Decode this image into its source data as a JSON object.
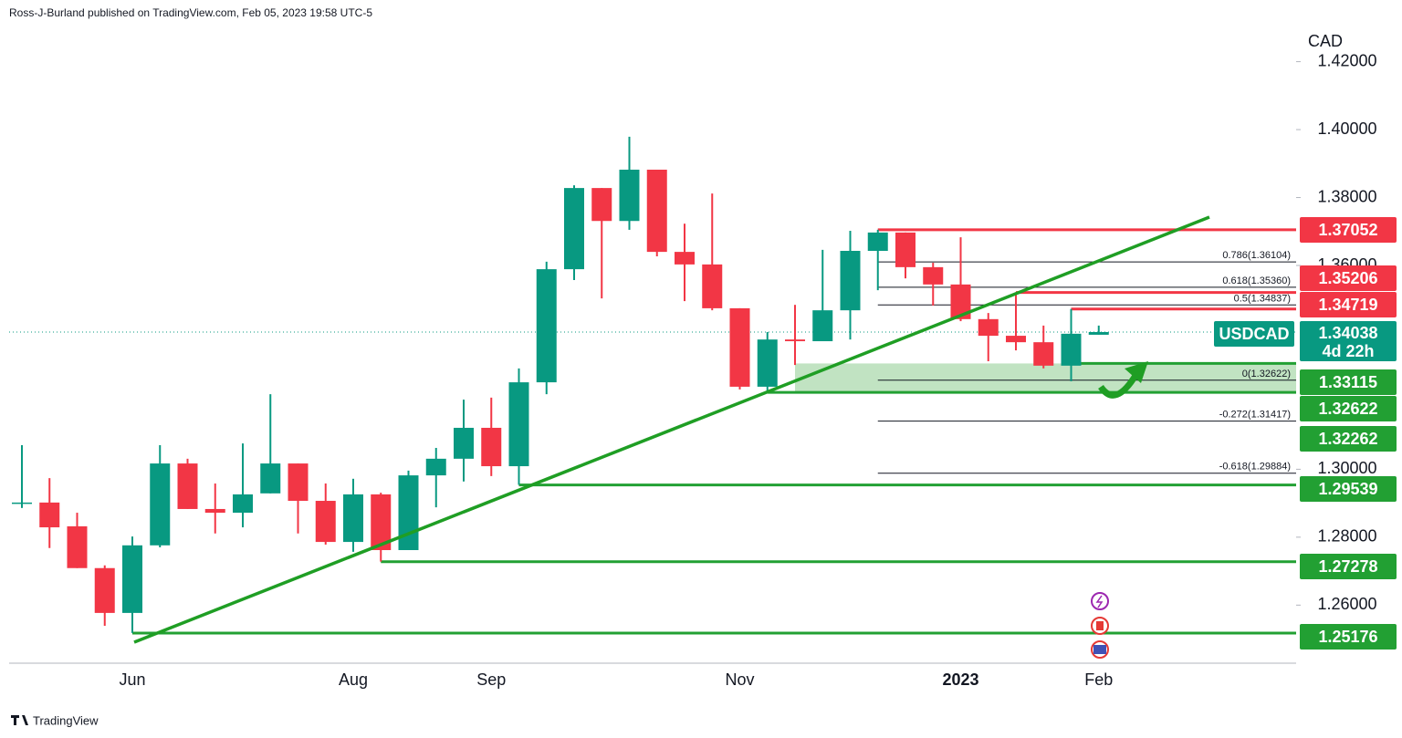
{
  "header": "Ross-J-Burland published on TradingView.com, Feb 05, 2023 19:58 UTC-5",
  "chart_data": {
    "type": "candlestick",
    "currency": "CAD",
    "categories": [
      null,
      null,
      null,
      null,
      "Jun",
      null,
      null,
      null,
      null,
      null,
      null,
      null,
      "Aug",
      null,
      null,
      null,
      null,
      "Sep",
      null,
      null,
      null,
      null,
      null,
      null,
      null,
      null,
      "Nov",
      null,
      null,
      null,
      null,
      null,
      null,
      null,
      "2023",
      null,
      null,
      null,
      null,
      "Feb"
    ],
    "open": [
      1.2899,
      1.2902,
      1.2832,
      1.2709,
      1.2577,
      1.2776,
      1.3017,
      1.2883,
      1.2872,
      1.2929,
      1.3017,
      1.2907,
      1.2786,
      1.2926,
      1.2762,
      1.2982,
      1.3031,
      1.3122,
      1.3009,
      1.3256,
      1.3589,
      1.3828,
      1.3731,
      1.3882,
      1.364,
      1.3603,
      1.3474,
      1.3243,
      1.3382,
      1.3377,
      1.3468,
      1.3643,
      1.3697,
      1.3595,
      1.3544,
      1.3442,
      1.3393,
      1.3374,
      1.3305,
      1.3396
    ],
    "high": [
      1.3071,
      1.2974,
      1.2872,
      1.2717,
      1.2802,
      1.3071,
      1.3031,
      1.2958,
      1.3076,
      1.3221,
      1.3017,
      1.2958,
      1.2972,
      1.2931,
      1.2996,
      1.3063,
      1.3205,
      1.3211,
      1.3297,
      1.3611,
      1.3836,
      1.3828,
      1.3979,
      1.3882,
      1.3723,
      1.3812,
      1.3474,
      1.3404,
      1.3484,
      1.3646,
      1.3702,
      1.3705,
      1.3697,
      1.3608,
      1.3683,
      1.346,
      1.3521,
      1.3423,
      1.3472,
      1.3423
    ],
    "low": [
      1.2886,
      1.2768,
      1.2709,
      1.2539,
      1.2518,
      1.277,
      1.2883,
      1.2811,
      1.2829,
      1.2929,
      1.2811,
      1.2778,
      1.2757,
      1.2728,
      1.2762,
      1.2888,
      1.2964,
      1.298,
      1.2954,
      1.3221,
      1.3557,
      1.3503,
      1.3705,
      1.3627,
      1.3495,
      1.3468,
      1.3235,
      1.3226,
      1.3307,
      1.3377,
      1.3382,
      1.3527,
      1.3562,
      1.3482,
      1.3436,
      1.3318,
      1.335,
      1.3297,
      1.3259,
      1.3396
    ],
    "close": [
      1.2902,
      1.2829,
      1.2709,
      1.2577,
      1.2776,
      1.3017,
      1.2883,
      1.2872,
      1.2926,
      1.3017,
      1.2907,
      1.2786,
      1.2926,
      1.2762,
      1.2982,
      1.3031,
      1.3122,
      1.3009,
      1.3256,
      1.3589,
      1.3828,
      1.3731,
      1.3882,
      1.364,
      1.3603,
      1.3474,
      1.3243,
      1.3382,
      1.3377,
      1.3468,
      1.3643,
      1.3697,
      1.3595,
      1.3544,
      1.3442,
      1.3393,
      1.3374,
      1.3305,
      1.3399,
      1.3404
    ],
    "up_color": "#089981",
    "down_color": "#f23645",
    "ylim": [
      1.2429,
      1.4301
    ],
    "yticks": [
      {
        "value": 1.26,
        "label": "1.26000"
      },
      {
        "value": 1.28,
        "label": "1.28000"
      },
      {
        "value": 1.3,
        "label": "1.30000"
      },
      {
        "value": 1.36,
        "label": "1.36000"
      },
      {
        "value": 1.38,
        "label": "1.38000"
      },
      {
        "value": 1.4,
        "label": "1.40000"
      },
      {
        "value": 1.42,
        "label": "1.42000"
      }
    ],
    "levels": [
      {
        "price": 1.37052,
        "color": "#f23645"
      },
      {
        "price": 1.35206,
        "color": "#f23645"
      },
      {
        "price": 1.34719,
        "color": "#f23645"
      },
      {
        "price": 1.33115,
        "color": "#22a033"
      },
      {
        "price": 1.32622,
        "color": "#22a033"
      },
      {
        "price": 1.32262,
        "color": "#22a033"
      },
      {
        "price": 1.29539,
        "color": "#22a033"
      },
      {
        "price": 1.27278,
        "color": "#22a033"
      },
      {
        "price": 1.25176,
        "color": "#22a033"
      }
    ],
    "fibonacci": [
      {
        "label": "0.786(1.36104)",
        "price": 1.36104
      },
      {
        "label": "0.618(1.35360)",
        "price": 1.3536
      },
      {
        "label": "0.5(1.34837)",
        "price": 1.34837
      },
      {
        "label": "0(1.32622)",
        "price": 1.32622
      },
      {
        "label": "-0.272(1.31417)",
        "price": 1.31417
      },
      {
        "label": "-0.618(1.29884)",
        "price": 1.29884
      }
    ],
    "last": {
      "name": "USDCAD",
      "price": 1.34038,
      "countdown": "4d 22h",
      "color": "#089981"
    }
  },
  "footer": "TradingView"
}
